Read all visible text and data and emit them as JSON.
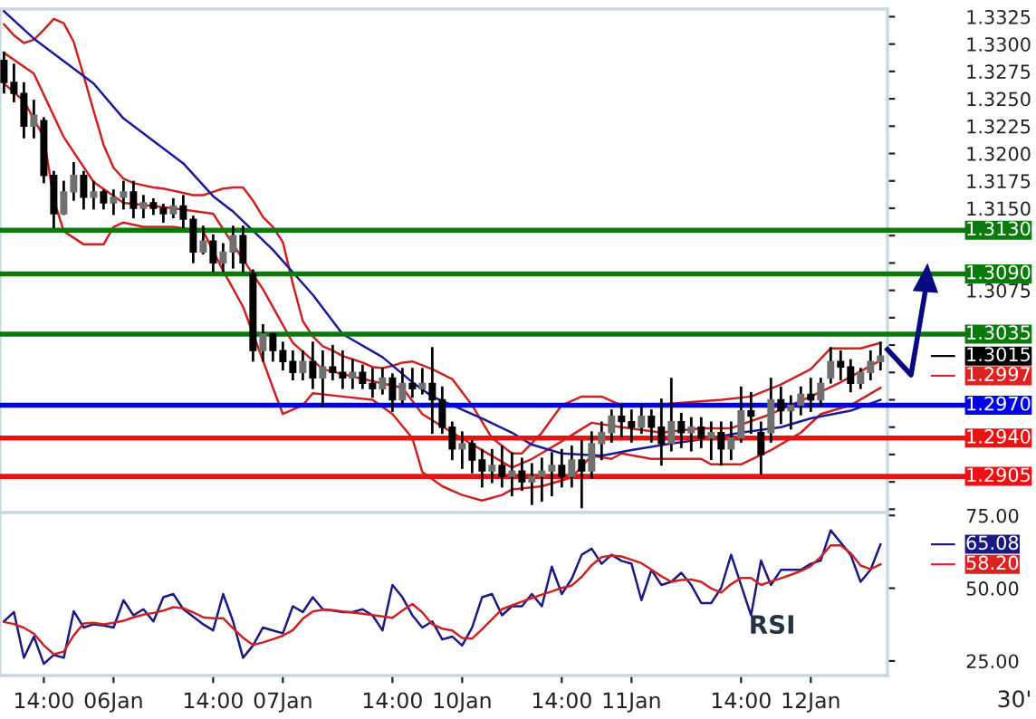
{
  "chart_data": [
    {
      "type": "candlestick",
      "ylim": [
        1.2872,
        1.3332
      ],
      "tick_labels": "y",
      "categories": [
        null,
        null,
        null,
        null,
        null,
        null,
        null,
        null,
        null,
        null,
        null,
        null,
        null,
        null,
        null,
        null,
        null,
        null,
        null,
        null,
        null,
        null,
        null,
        null,
        null,
        null,
        null,
        null,
        null,
        null,
        null,
        null,
        null,
        null,
        null,
        null,
        null,
        null,
        null,
        null,
        null,
        null,
        null,
        null,
        null,
        null,
        null,
        null,
        null,
        null,
        null,
        null,
        null,
        null,
        null,
        null,
        null,
        null,
        null,
        null,
        null,
        null,
        null,
        null,
        null,
        null,
        null,
        null,
        null,
        null,
        null,
        null,
        null,
        null,
        null,
        null,
        null,
        null,
        null,
        null,
        null,
        null,
        null,
        null,
        null,
        null,
        null,
        null,
        null
      ],
      "yticks": [
        {
          "value": 1.2875,
          "label": null
        },
        {
          "value": 1.29,
          "label": null
        },
        {
          "value": 1.2925,
          "label": null
        },
        {
          "value": 1.295,
          "label": null
        },
        {
          "value": 1.2975,
          "label": null
        },
        {
          "value": 1.3,
          "label": null
        },
        {
          "value": 1.3025,
          "label": null
        },
        {
          "value": 1.305,
          "label": null
        },
        {
          "value": 1.3075,
          "label": "1.3075"
        },
        {
          "value": 1.31,
          "label": null
        },
        {
          "value": 1.3125,
          "label": null
        },
        {
          "value": 1.315,
          "label": "1.3150"
        },
        {
          "value": 1.3175,
          "label": "1.3175"
        },
        {
          "value": 1.32,
          "label": "1.3200"
        },
        {
          "value": 1.3225,
          "label": "1.3225"
        },
        {
          "value": 1.325,
          "label": "1.3250"
        },
        {
          "value": 1.3275,
          "label": "1.3275"
        },
        {
          "value": 1.33,
          "label": "1.3300"
        },
        {
          "value": 1.3325,
          "label": "1.3325"
        }
      ],
      "ohlc": [
        [
          1.3285,
          1.3292,
          1.3256,
          1.3265
        ],
        [
          1.3265,
          1.3281,
          1.3248,
          1.3255
        ],
        [
          1.3255,
          1.3264,
          1.3215,
          1.3225
        ],
        [
          1.3225,
          1.3248,
          1.3215,
          1.3235
        ],
        [
          1.323,
          1.3232,
          1.3174,
          1.318
        ],
        [
          1.318,
          1.3183,
          1.3133,
          1.3145
        ],
        [
          1.3145,
          1.3174,
          1.3145,
          1.3165
        ],
        [
          1.3165,
          1.3191,
          1.3158,
          1.318
        ],
        [
          1.318,
          1.3183,
          1.315,
          1.316
        ],
        [
          1.316,
          1.3174,
          1.315,
          1.3165
        ],
        [
          1.3165,
          1.3166,
          1.315,
          1.3155
        ],
        [
          1.3155,
          1.3166,
          1.3145,
          1.316
        ],
        [
          1.316,
          1.3174,
          1.315,
          1.3165
        ],
        [
          1.3165,
          1.3174,
          1.3142,
          1.315
        ],
        [
          1.315,
          1.3161,
          1.3142,
          1.3155
        ],
        [
          1.3155,
          1.3158,
          1.3145,
          1.315
        ],
        [
          1.315,
          1.3153,
          1.3138,
          1.3145
        ],
        [
          1.3145,
          1.3158,
          1.3142,
          1.3152
        ],
        [
          1.3152,
          1.3161,
          1.3133,
          1.314
        ],
        [
          1.314,
          1.3142,
          1.3101,
          1.311
        ],
        [
          1.311,
          1.3133,
          1.3109,
          1.312
        ],
        [
          1.312,
          1.3125,
          1.3093,
          1.31
        ],
        [
          1.31,
          1.3117,
          1.3093,
          1.311
        ],
        [
          1.311,
          1.3133,
          1.3096,
          1.3125
        ],
        [
          1.3125,
          1.3133,
          1.3093,
          1.31
        ],
        [
          1.309,
          1.3093,
          1.3011,
          1.302
        ],
        [
          1.302,
          1.3043,
          1.3011,
          1.3035
        ],
        [
          1.3035,
          1.3035,
          1.3011,
          1.302
        ],
        [
          1.302,
          1.3027,
          1.3003,
          1.301
        ],
        [
          1.301,
          1.3019,
          1.2994,
          1.3
        ],
        [
          1.3,
          1.3019,
          1.2994,
          1.301
        ],
        [
          1.301,
          1.3027,
          1.2986,
          1.2995
        ],
        [
          1.2995,
          1.3019,
          1.297,
          1.3005
        ],
        [
          1.3005,
          1.3024,
          1.2994,
          1.3
        ],
        [
          1.3,
          1.3019,
          1.2986,
          1.2995
        ],
        [
          1.2995,
          1.3011,
          1.2986,
          1.3
        ],
        [
          1.3,
          1.3006,
          1.2986,
          1.299
        ],
        [
          1.299,
          1.3003,
          1.2978,
          1.2985
        ],
        [
          1.2985,
          1.3003,
          1.2981,
          1.2995
        ],
        [
          1.2995,
          1.2998,
          1.2965,
          1.2975
        ],
        [
          1.2975,
          1.3003,
          1.2972,
          1.299
        ],
        [
          1.299,
          1.3003,
          1.2978,
          1.2985
        ],
        [
          1.2985,
          1.3003,
          1.2981,
          1.299
        ],
        [
          1.299,
          1.3022,
          1.2945,
          1.2975
        ],
        [
          1.2975,
          1.2986,
          1.2945,
          1.295
        ],
        [
          1.295,
          1.2954,
          1.2921,
          1.293
        ],
        [
          1.293,
          1.2945,
          1.2913,
          1.2935
        ],
        [
          1.2935,
          1.2937,
          1.2909,
          1.292
        ],
        [
          1.292,
          1.2929,
          1.2896,
          1.291
        ],
        [
          1.291,
          1.2929,
          1.29,
          1.2915
        ],
        [
          1.2915,
          1.2932,
          1.2896,
          1.2905
        ],
        [
          1.2905,
          1.2926,
          1.2888,
          1.291
        ],
        [
          1.291,
          1.2921,
          1.2893,
          1.29
        ],
        [
          1.29,
          1.2916,
          1.288,
          1.2905
        ],
        [
          1.2905,
          1.2921,
          1.2883,
          1.291
        ],
        [
          1.291,
          1.2926,
          1.2888,
          1.2915
        ],
        [
          1.2915,
          1.2929,
          1.2896,
          1.2905
        ],
        [
          1.2905,
          1.2932,
          1.2896,
          1.292
        ],
        [
          1.292,
          1.2937,
          1.2877,
          1.291
        ],
        [
          1.291,
          1.2945,
          1.2904,
          1.2935
        ],
        [
          1.2935,
          1.2954,
          1.2921,
          1.2945
        ],
        [
          1.2945,
          1.2965,
          1.2937,
          1.296
        ],
        [
          1.296,
          1.297,
          1.2942,
          1.2955
        ],
        [
          1.2955,
          1.2965,
          1.2937,
          1.295
        ],
        [
          1.295,
          1.297,
          1.2945,
          1.296
        ],
        [
          1.296,
          1.2965,
          1.2937,
          1.295
        ],
        [
          1.295,
          1.2975,
          1.2916,
          1.2935
        ],
        [
          1.2935,
          1.2994,
          1.2929,
          1.2955
        ],
        [
          1.2955,
          1.2962,
          1.2932,
          1.2945
        ],
        [
          1.2945,
          1.2958,
          1.2929,
          1.295
        ],
        [
          1.295,
          1.2958,
          1.2932,
          1.294
        ],
        [
          1.294,
          1.2954,
          1.2921,
          1.2945
        ],
        [
          1.2945,
          1.2954,
          1.2916,
          1.293
        ],
        [
          1.293,
          1.2954,
          1.2921,
          1.294
        ],
        [
          1.294,
          1.2986,
          1.2937,
          1.2965
        ],
        [
          1.2965,
          1.2981,
          1.2945,
          1.296
        ],
        [
          1.2945,
          1.2954,
          1.2908,
          1.2925
        ],
        [
          1.2945,
          1.2994,
          1.2937,
          1.2975
        ],
        [
          1.2975,
          1.2986,
          1.2954,
          1.2965
        ],
        [
          1.2965,
          1.2978,
          1.2949,
          1.297
        ],
        [
          1.297,
          1.2986,
          1.2962,
          1.298
        ],
        [
          1.298,
          1.2994,
          1.2965,
          1.2975
        ],
        [
          1.2975,
          1.2994,
          1.297,
          1.299
        ],
        [
          1.2995,
          1.3022,
          1.2991,
          1.301
        ],
        [
          1.301,
          1.3019,
          1.2994,
          1.3005
        ],
        [
          1.3005,
          1.3011,
          1.2983,
          1.299
        ],
        [
          1.299,
          1.3003,
          1.2986,
          1.3
        ],
        [
          1.3,
          1.3019,
          1.2994,
          1.301
        ],
        [
          1.301,
          1.3027,
          1.3003,
          1.3015
        ]
      ],
      "series": [
        {
          "type": "line",
          "color": "#cc2222",
          "values": [
            1.3318,
            1.3308,
            1.3301,
            1.3304,
            1.3313,
            1.3323,
            1.3319,
            1.3302,
            1.3271,
            1.3239,
            1.3208,
            1.3187,
            1.3177,
            1.3173,
            1.3171,
            1.3169,
            1.3168,
            1.3166,
            1.3164,
            1.3162,
            1.3162,
            1.3165,
            1.3168,
            1.3169,
            1.3169,
            1.3157,
            1.3142,
            1.3133,
            1.3119,
            1.3081,
            1.3047,
            1.3033,
            1.3024,
            1.302,
            1.3015,
            1.3012,
            1.3009,
            1.3005,
            1.3004,
            1.3006,
            1.3009,
            1.301,
            null,
            1.3003,
            null,
            1.2994,
            null,
            1.297,
            null,
            1.294,
            null,
            1.2926,
            1.2926,
            null,
            1.2945,
            null,
            1.297,
            null,
            1.2978,
            null,
            1.2978,
            null,
            1.297,
            null,
            null,
            1.297,
            null,
            null,
            null,
            1.2973,
            null,
            null,
            1.2975,
            null,
            null,
            1.2978,
            null,
            null,
            1.2989,
            null,
            null,
            1.3003,
            null,
            1.3022,
            null,
            null,
            1.3022,
            null,
            1.3027
          ]
        },
        {
          "type": "line",
          "color": "#cc2222",
          "values": [
            1.3292,
            null,
            null,
            1.3273,
            null,
            null,
            1.3215,
            null,
            null,
            1.3174,
            null,
            null,
            1.3155,
            null,
            null,
            null,
            null,
            1.315,
            null,
            null,
            null,
            1.3145,
            null,
            1.3117,
            null,
            null,
            1.3076,
            null,
            null,
            1.3027,
            null,
            null,
            1.3003,
            null,
            null,
            null,
            1.2994,
            null,
            null,
            null,
            1.2986,
            null,
            1.2962,
            null,
            null,
            1.2945,
            null,
            null,
            1.2929,
            null,
            null,
            1.2913,
            null,
            1.2921,
            null,
            null,
            1.2937,
            null,
            null,
            1.2954,
            null,
            null,
            1.295,
            null,
            null,
            null,
            1.2945,
            null,
            null,
            null,
            1.2949,
            null,
            null,
            1.2949,
            null,
            null,
            null,
            1.2962,
            null,
            null,
            null,
            1.2978,
            null,
            null,
            1.2991,
            null,
            null,
            null,
            1.3011
          ]
        },
        {
          "type": "line",
          "color": "#cc2222",
          "values": [
            1.3264,
            null,
            1.3248,
            null,
            1.3215,
            1.3158,
            1.3129,
            null,
            1.3117,
            null,
            1.3117,
            1.3133,
            1.3137,
            null,
            1.3133,
            null,
            null,
            1.3133,
            null,
            null,
            1.3129,
            null,
            1.3093,
            null,
            1.306,
            null,
            1.3011,
            1.2986,
            1.2962,
            null,
            1.297,
            1.2981,
            null,
            null,
            1.2978,
            null,
            null,
            1.2975,
            null,
            1.2962,
            null,
            1.294,
            1.2909,
            null,
            1.2896,
            null,
            1.2888,
            null,
            1.2883,
            null,
            1.2888,
            1.2893,
            null,
            null,
            1.2896,
            null,
            null,
            1.2904,
            null,
            1.2924,
            null,
            1.2921,
            1.2926,
            null,
            null,
            1.2921,
            null,
            null,
            1.2921,
            null,
            1.2921,
            1.2916,
            null,
            null,
            1.2916,
            null,
            null,
            1.2929,
            null,
            null,
            1.2945,
            null,
            1.2962,
            null,
            null,
            1.297,
            null,
            null,
            1.2986
          ]
        },
        {
          "type": "line",
          "color": "#1a1a99",
          "values": [
            1.333,
            null,
            null,
            1.3305,
            null,
            null,
            null,
            null,
            null,
            1.3264,
            null,
            null,
            1.3232,
            null,
            null,
            null,
            null,
            null,
            1.3191,
            null,
            null,
            1.3161,
            null,
            1.3147,
            null,
            null,
            null,
            1.3112,
            null,
            null,
            null,
            1.3071,
            null,
            null,
            1.3035,
            null,
            null,
            null,
            1.3014,
            null,
            null,
            1.2991,
            null,
            1.2978,
            null,
            1.297,
            null,
            null,
            1.2958,
            null,
            null,
            1.2945,
            null,
            1.2934,
            null,
            null,
            1.2926,
            null,
            null,
            null,
            1.2924,
            null,
            null,
            1.2929,
            null,
            null,
            null,
            1.2935,
            null,
            null,
            null,
            1.294,
            null,
            null,
            1.2945,
            null,
            null,
            null,
            1.295,
            null,
            null,
            1.2958,
            null,
            null,
            null,
            1.2965,
            null,
            null,
            1.2975
          ]
        }
      ],
      "ref_lines": [
        {
          "axis": "y",
          "value": 1.313,
          "label": "1.3130",
          "color": "#0a7a0a"
        },
        {
          "axis": "y",
          "value": 1.309,
          "label": "1.3090",
          "color": "#0a7a0a"
        },
        {
          "axis": "y",
          "value": 1.3035,
          "label": "1.3035",
          "color": "#0a7a0a"
        },
        {
          "axis": "y",
          "value": 1.297,
          "label": "1.2970",
          "color": "#0000ee"
        },
        {
          "axis": "y",
          "value": 1.294,
          "label": "1.2940",
          "color": "#ee1111"
        },
        {
          "axis": "y",
          "value": 1.2905,
          "label": "1.2905",
          "color": "#ee1111"
        }
      ],
      "annotations": [
        "1.3015",
        "1.2997"
      ]
    },
    {
      "type": "line",
      "ylim": [
        20,
        76
      ],
      "categories": [
        null,
        null,
        null,
        null,
        "14:00",
        null,
        null,
        null,
        null,
        null,
        null,
        "06Jan",
        null,
        null,
        null,
        null,
        null,
        null,
        null,
        null,
        null,
        "14:00",
        null,
        null,
        null,
        null,
        null,
        null,
        "07Jan",
        null,
        null,
        null,
        null,
        null,
        null,
        null,
        null,
        null,
        null,
        "14:00",
        null,
        null,
        null,
        null,
        null,
        null,
        "10Jan",
        null,
        null,
        null,
        null,
        null,
        null,
        null,
        null,
        null,
        "14:00",
        null,
        null,
        null,
        null,
        null,
        null,
        "11Jan",
        null,
        null,
        null,
        null,
        null,
        null,
        null,
        null,
        null,
        null,
        "14:00",
        null,
        null,
        null,
        null,
        null,
        null,
        "12Jan",
        null,
        null,
        null,
        null,
        null,
        null,
        null
      ],
      "yticks": [
        {
          "value": 25,
          "label": "25.00"
        },
        {
          "value": 50,
          "label": "50.00"
        },
        {
          "value": 75,
          "label": "75.00"
        }
      ],
      "series": [
        {
          "color": "#1a1a80",
          "values": [
            38.6,
            41.8,
            26.1,
            33.4,
            24.0,
            27.1,
            26.1,
            42.1,
            36.5,
            37.6,
            37.2,
            36.5,
            45.9,
            40.7,
            42.8,
            38.6,
            46.9,
            48.0,
            42.8,
            40.2,
            37.6,
            35.5,
            48.0,
            38.6,
            26.1,
            30.3,
            36.5,
            35.5,
            34.5,
            43.8,
            41.8,
            46.9,
            42.8,
            42.3,
            41.8,
            41.8,
            42.8,
            40.7,
            35.5,
            51.1,
            46.9,
            40.7,
            36.5,
            38.6,
            32.4,
            33.4,
            30.3,
            36.5,
            46.9,
            48.0,
            40.7,
            43.8,
            43.8,
            48.0,
            43.8,
            57.4,
            48.0,
            53.2,
            61.5,
            63.6,
            58.4,
            61.5,
            59.4,
            58.4,
            45.9,
            56.3,
            51.1,
            52.2,
            55.3,
            51.1,
            44.9,
            44.9,
            50.1,
            61.5,
            51.1,
            40.7,
            59.5,
            51.1,
            56.3,
            56.3,
            56.3,
            58.4,
            59.5,
            69.9,
            65.7,
            61.5,
            52.2,
            56.3,
            65.08
          ]
        },
        {
          "color": "#cc2222",
          "values": [
            38.4,
            37.7,
            36.4,
            34.4,
            30.4,
            27.3,
            28.2,
            33.8,
            37.9,
            38.1,
            37.6,
            38.1,
            38.8,
            40.0,
            40.9,
            41.5,
            42.3,
            43.5,
            43.1,
            41.7,
            40.0,
            39.7,
            39.7,
            36.2,
            33.0,
            30.5,
            31.4,
            32.5,
            33.7,
            35.6,
            39.5,
            42.0,
            42.6,
            42.5,
            42.0,
            41.6,
            41.2,
            40.8,
            40.3,
            39.8,
            42.3,
            44.6,
            41.7,
            37.6,
            36.1,
            35.5,
            32.9,
            32.7,
            35.9,
            39.3,
            42.8,
            44.1,
            45.4,
            46.6,
            47.8,
            48.9,
            50.1,
            50.9,
            53.9,
            57.9,
            60.7,
            61.2,
            60.9,
            59.8,
            58.6,
            56.4,
            54.1,
            52.2,
            52.8,
            53.0,
            52.2,
            49.9,
            48.5,
            51.4,
            53.5,
            53.5,
            51.1,
            52.3,
            53.4,
            54.6,
            55.9,
            57.6,
            60.8,
            64.7,
            64.7,
            62.1,
            57.8,
            56.5,
            58.2
          ]
        }
      ],
      "annotations": [
        "65.08",
        "58.20",
        "RSI",
        "30'"
      ]
    }
  ]
}
